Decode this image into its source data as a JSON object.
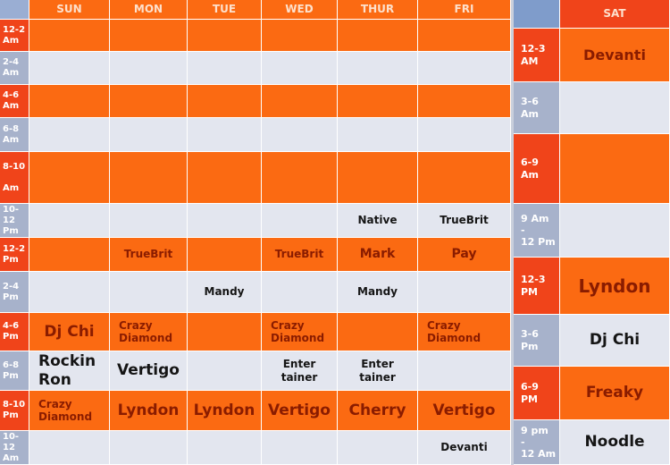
{
  "header": {
    "left_days": [
      "SUN",
      "MON",
      "TUE",
      "WED",
      "THUR",
      "FRI"
    ],
    "right_day": "SAT"
  },
  "left_rows": [
    {
      "time": "12-2\nAm",
      "cells": [
        null,
        null,
        null,
        null,
        null,
        null
      ]
    },
    {
      "time": "2-4\nAm",
      "cells": [
        null,
        null,
        null,
        null,
        null,
        null
      ]
    },
    {
      "time": "4-6\nAm",
      "cells": [
        null,
        null,
        null,
        null,
        null,
        null
      ]
    },
    {
      "time": "6-8\nAm",
      "cells": [
        null,
        null,
        null,
        null,
        null,
        null
      ]
    },
    {
      "time": "8-10\n\nAm",
      "cells": [
        null,
        null,
        null,
        null,
        null,
        null
      ]
    },
    {
      "time": "10-12\nPm",
      "cells": [
        null,
        null,
        null,
        null,
        "Native",
        "TrueBrit"
      ]
    },
    {
      "time": "12-2\nPm",
      "cells": [
        null,
        "TrueBrit",
        null,
        "TrueBrit",
        "Mark",
        "Pay"
      ]
    },
    {
      "time": "2-4\nPm",
      "cells": [
        null,
        null,
        "Mandy",
        null,
        "Mandy",
        null
      ]
    },
    {
      "time": "4-6\nPm",
      "cells": [
        "Dj Chi",
        "Crazy\nDiamond",
        null,
        "Crazy\nDiamond",
        null,
        "Crazy\nDiamond"
      ]
    },
    {
      "time": "6-8\nPm",
      "cells": [
        "Rockin\nRon",
        "Vertigo",
        null,
        "Enter\ntainer",
        "Enter\ntainer",
        null
      ]
    },
    {
      "time": "8-10\nPm",
      "cells": [
        "Crazy\nDiamond",
        "Lyndon",
        "Lyndon",
        "Vertigo",
        "Cherry",
        "Vertigo"
      ]
    },
    {
      "time": "10-12\nAm",
      "cells": [
        null,
        null,
        null,
        null,
        null,
        "Devanti"
      ]
    }
  ],
  "right_rows": [
    {
      "time": "12-3\nAM",
      "show": "Devanti"
    },
    {
      "time": "3-6\nAm",
      "show": null
    },
    {
      "time": "6-9\nAm",
      "show": null
    },
    {
      "time": "9 Am\n-\n12 Pm",
      "show": null
    },
    {
      "time": "12-3\nPM",
      "show": "Lyndon"
    },
    {
      "time": "3-6\nPm",
      "show": "Dj Chi"
    },
    {
      "time": "6-9\nPM",
      "show": "Freaky"
    },
    {
      "time": "9 pm\n-\n12 Am",
      "show": "Noodle"
    }
  ]
}
